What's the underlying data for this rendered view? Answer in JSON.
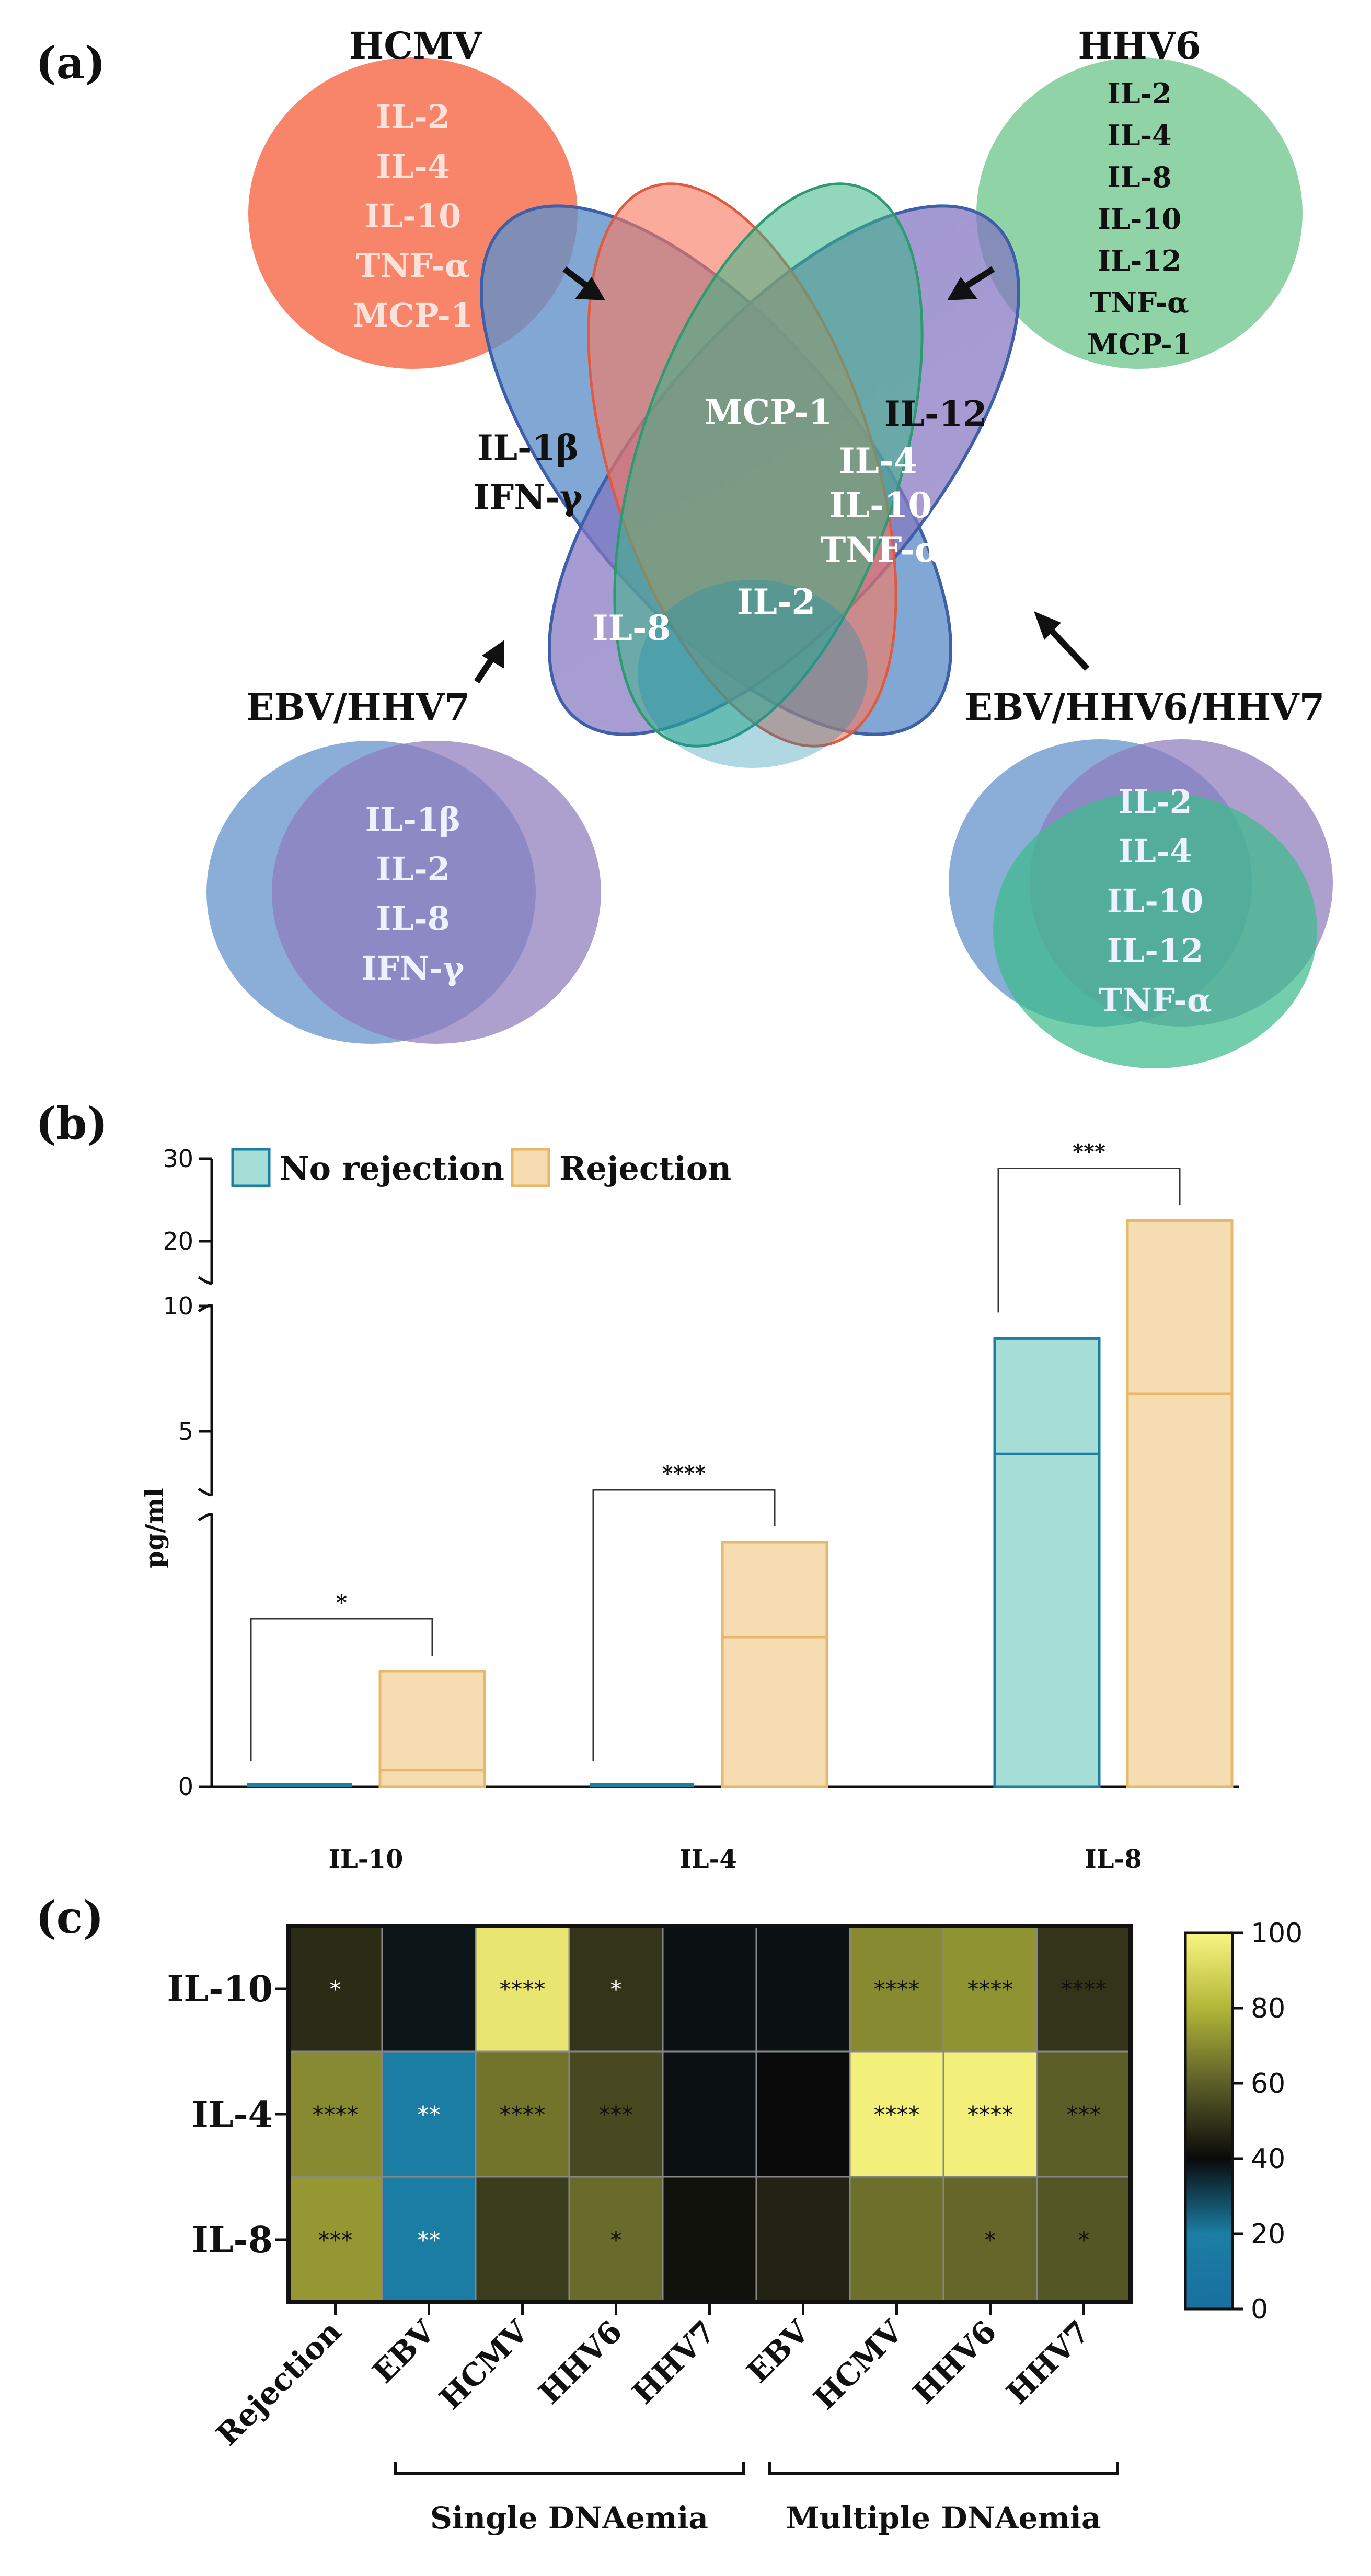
{
  "panel_labels": [
    "(a)",
    "(b)",
    "(c)"
  ],
  "venn": {
    "hcmv": {
      "title": "HCMV",
      "items": [
        "IL-2",
        "IL-4",
        "IL-10",
        "TNF-α",
        "MCP-1"
      ]
    },
    "hhv6": {
      "title": "HHV6",
      "items": [
        "IL-2",
        "IL-4",
        "IL-8",
        "IL-10",
        "IL-12",
        "TNF-α",
        "MCP-1"
      ]
    },
    "ebv_hhv7": {
      "title": "EBV/HHV7",
      "items": [
        "IL-1β",
        "IL-2",
        "IL-8",
        "IFN-γ"
      ]
    },
    "ebv_hhv6_hhv7": {
      "title": "EBV/HHV6/HHV7",
      "items": [
        "IL-2",
        "IL-4",
        "IL-10",
        "IL-12",
        "TNF-α"
      ]
    },
    "regions": {
      "hcmv_hhv6": "MCP-1",
      "hhv6_triple": "IL-12",
      "triple_group": [
        "IL-4",
        "IL-10",
        "TNF-α"
      ],
      "ebv_only": [
        "IL-1β",
        "IFN-γ"
      ],
      "ebv_hhv6": "IL-8",
      "center": "IL-2"
    },
    "colors": {
      "hcmv": "#f8785d",
      "hhv6": "#7ccf9b",
      "ebv": "#5d8fc9",
      "hhv7": "#8d7bbd",
      "triple_core": "#1b9e90"
    }
  },
  "chart_data": [
    {
      "type": "bar",
      "panel": "(b)",
      "title": "",
      "xlabel": "",
      "ylabel": "pg/ml",
      "categories": [
        "IL-10",
        "IL-4",
        "IL-8"
      ],
      "y_axis": {
        "segments": [
          {
            "range": [
              0,
              2.0
            ],
            "ticks": [
              "0"
            ]
          },
          {
            "range": [
              2.5,
              10
            ],
            "ticks": [
              "5",
              "10"
            ]
          },
          {
            "range": [
              15,
              30
            ],
            "ticks": [
              "20",
              "30"
            ]
          }
        ]
      },
      "legend": {
        "position": "top-left",
        "entries": [
          "No rejection",
          "Rejection"
        ]
      },
      "series": [
        {
          "name": "No rejection",
          "color": "#a6ddd7",
          "line_color": "#1a7fa3",
          "values": [
            0.0,
            0.0,
            8.7
          ],
          "medians": [
            0.0,
            0.0,
            4.1
          ]
        },
        {
          "name": "Rejection",
          "color": "#f6dcb1",
          "line_color": "#e8b86a",
          "values": [
            0.85,
            1.8,
            22.5
          ],
          "medians": [
            0.12,
            1.1,
            6.5
          ]
        }
      ],
      "significance": [
        "*",
        "****",
        "***"
      ]
    },
    {
      "type": "heatmap",
      "panel": "(c)",
      "rows": [
        "IL-10",
        "IL-4",
        "IL-8"
      ],
      "columns": [
        "Rejection",
        "EBV",
        "HCMV",
        "HHV6",
        "HHV7",
        "EBV",
        "HCMV",
        "HHV6",
        "HHV7"
      ],
      "groups": [
        {
          "label": "Single DNAemia",
          "columns": [
            1,
            2,
            3,
            4
          ]
        },
        {
          "label": "Multiple DNAemia",
          "columns": [
            5,
            6,
            7,
            8
          ]
        }
      ],
      "values": [
        [
          48,
          38,
          95,
          50,
          39,
          39,
          70,
          72,
          50
        ],
        [
          70,
          18,
          65,
          55,
          39,
          40,
          98,
          98,
          60
        ],
        [
          73,
          18,
          52,
          63,
          42,
          46,
          64,
          62,
          58
        ]
      ],
      "annotations": [
        [
          "*",
          "",
          "****",
          "*",
          "",
          "",
          "****",
          "****",
          "****"
        ],
        [
          "****",
          "**",
          "****",
          "***",
          "",
          "",
          "****",
          "****",
          "***"
        ],
        [
          "***",
          "**",
          "",
          "*",
          "",
          "",
          "",
          "*",
          "*"
        ]
      ],
      "colorbar": {
        "min": 0,
        "max": 100,
        "ticks": [
          "0",
          "20",
          "40",
          "60",
          "80",
          "100"
        ]
      }
    }
  ]
}
